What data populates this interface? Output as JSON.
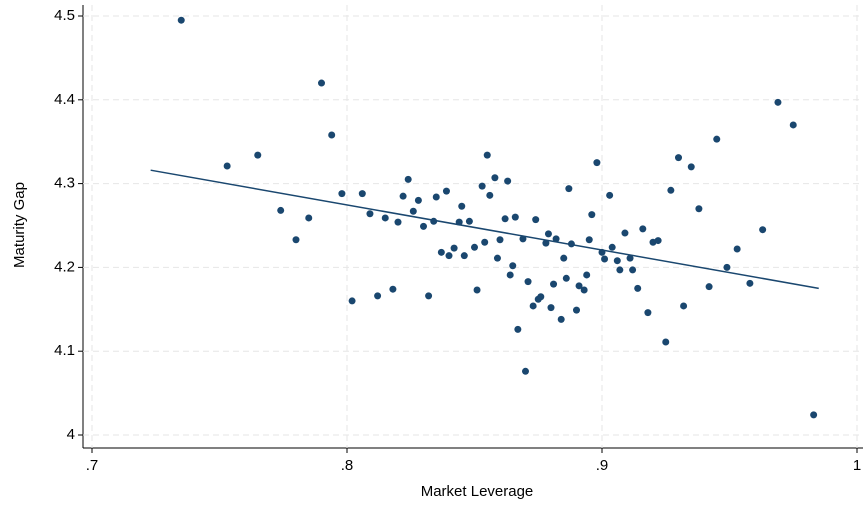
{
  "chart_data": {
    "type": "scatter",
    "xlabel": "Market Leverage",
    "ylabel": "Maturity Gap",
    "color": "#1a476f",
    "grid": true,
    "xlim": [
      0.7,
      1
    ],
    "ylim": [
      4,
      4.5
    ],
    "xticks": [
      {
        "value": 0.7,
        "label": ".7"
      },
      {
        "value": 0.8,
        "label": ".8"
      },
      {
        "value": 0.9,
        "label": ".9"
      },
      1
    ],
    "yticks": [
      4,
      4.1,
      4.2,
      4.3,
      4.4,
      4.5
    ],
    "x": [
      0.735,
      0.753,
      0.765,
      0.774,
      0.78,
      0.785,
      0.79,
      0.794,
      0.798,
      0.802,
      0.806,
      0.809,
      0.812,
      0.815,
      0.818,
      0.82,
      0.822,
      0.824,
      0.826,
      0.828,
      0.83,
      0.832,
      0.834,
      0.835,
      0.837,
      0.839,
      0.84,
      0.842,
      0.844,
      0.845,
      0.846,
      0.848,
      0.85,
      0.851,
      0.853,
      0.854,
      0.855,
      0.856,
      0.858,
      0.859,
      0.86,
      0.862,
      0.863,
      0.864,
      0.865,
      0.866,
      0.867,
      0.869,
      0.87,
      0.871,
      0.873,
      0.874,
      0.875,
      0.876,
      0.878,
      0.879,
      0.88,
      0.881,
      0.882,
      0.884,
      0.885,
      0.886,
      0.887,
      0.888,
      0.89,
      0.891,
      0.893,
      0.894,
      0.895,
      0.896,
      0.898,
      0.9,
      0.901,
      0.903,
      0.904,
      0.906,
      0.907,
      0.909,
      0.911,
      0.912,
      0.914,
      0.916,
      0.918,
      0.92,
      0.922,
      0.925,
      0.927,
      0.93,
      0.932,
      0.935,
      0.938,
      0.942,
      0.945,
      0.949,
      0.953,
      0.958,
      0.963,
      0.969,
      0.975,
      0.983
    ],
    "y": [
      4.495,
      4.321,
      4.334,
      4.268,
      4.233,
      4.259,
      4.42,
      4.358,
      4.288,
      4.16,
      4.288,
      4.264,
      4.166,
      4.259,
      4.174,
      4.254,
      4.285,
      4.305,
      4.267,
      4.28,
      4.249,
      4.166,
      4.255,
      4.284,
      4.218,
      4.291,
      4.214,
      4.223,
      4.254,
      4.273,
      4.214,
      4.255,
      4.224,
      4.173,
      4.297,
      4.23,
      4.334,
      4.286,
      4.307,
      4.211,
      4.233,
      4.258,
      4.303,
      4.191,
      4.202,
      4.26,
      4.126,
      4.234,
      4.076,
      4.183,
      4.154,
      4.257,
      4.162,
      4.165,
      4.229,
      4.24,
      4.152,
      4.18,
      4.234,
      4.138,
      4.211,
      4.187,
      4.294,
      4.228,
      4.149,
      4.178,
      4.173,
      4.191,
      4.233,
      4.263,
      4.325,
      4.218,
      4.21,
      4.286,
      4.224,
      4.208,
      4.197,
      4.241,
      4.211,
      4.197,
      4.175,
      4.246,
      4.146,
      4.23,
      4.232,
      4.111,
      4.292,
      4.331,
      4.154,
      4.32,
      4.27,
      4.177,
      4.353,
      4.2,
      4.222,
      4.181,
      4.245,
      4.397,
      4.37,
      4.024
    ],
    "fit": {
      "x": [
        0.723,
        0.985
      ],
      "y": [
        4.316,
        4.175
      ],
      "color": "#1a476f"
    }
  }
}
